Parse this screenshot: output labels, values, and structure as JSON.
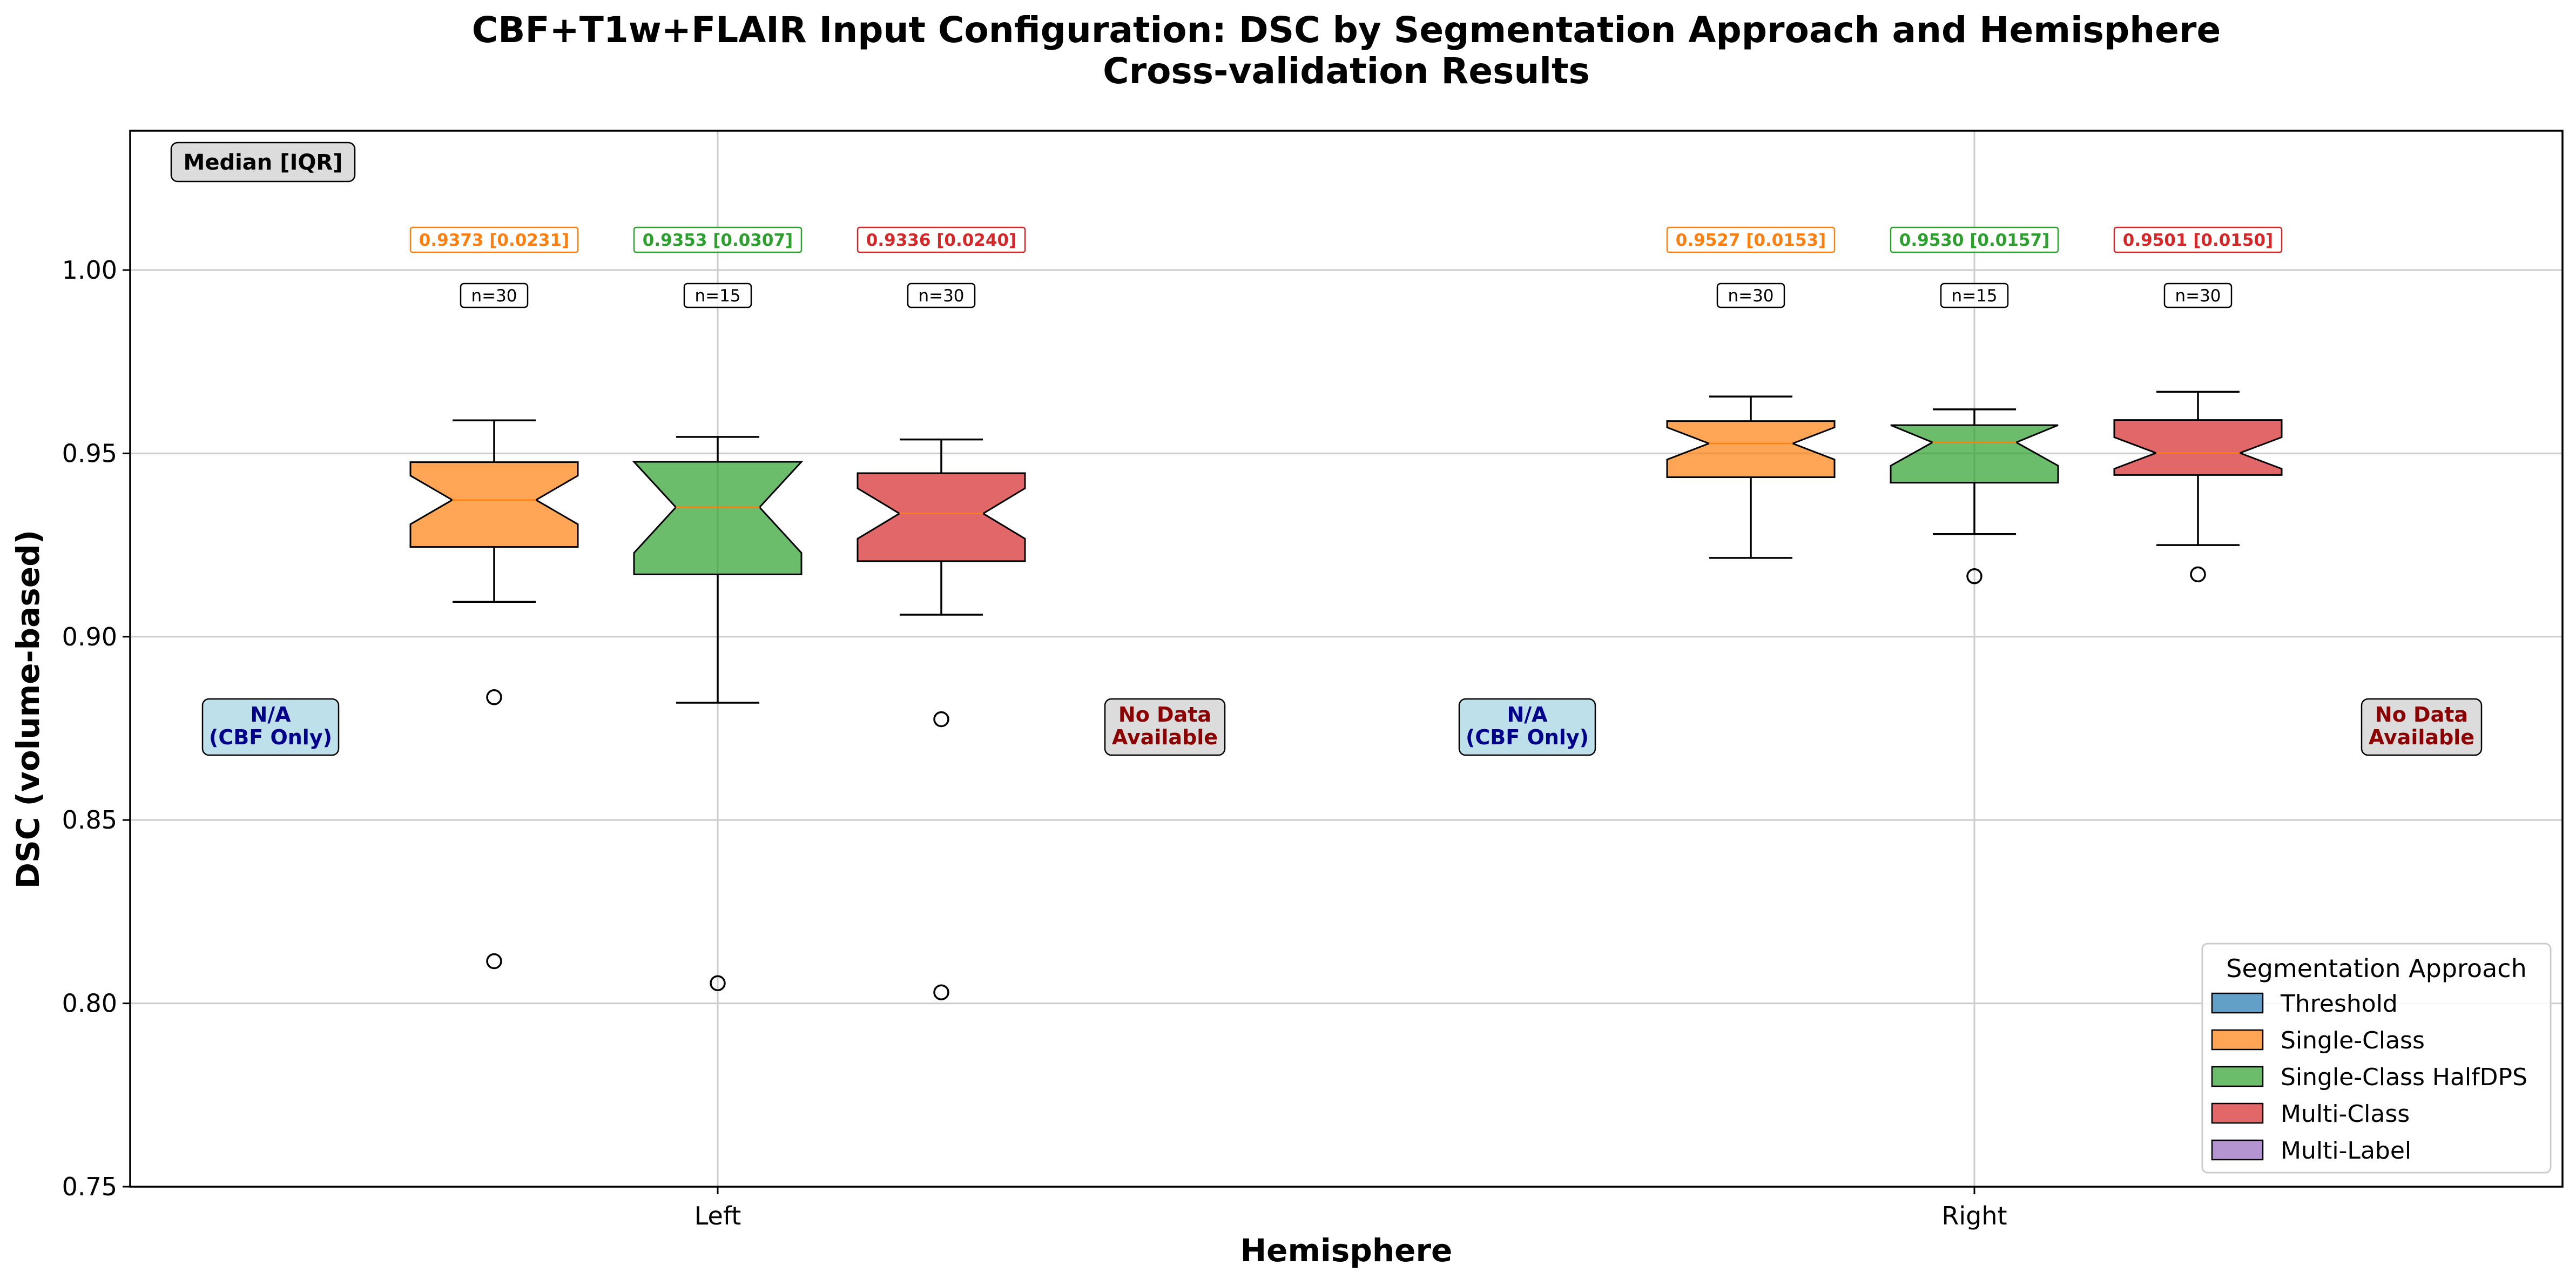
{
  "chart_data": {
    "type": "box",
    "title": "CBF+T1w+FLAIR Input Configuration: DSC by Segmentation Approach and Hemisphere",
    "subtitle": "Cross-validation Results",
    "xlabel": "Hemisphere",
    "ylabel": "DSC (volume-based)",
    "categories": [
      "Left",
      "Right"
    ],
    "ylim": [
      0.75,
      1.038
    ],
    "yticks": [
      0.75,
      0.8,
      0.85,
      0.9,
      0.95,
      1.0
    ],
    "ytick_labels": [
      "0.75",
      "0.80",
      "0.85",
      "0.90",
      "0.95",
      "1.00"
    ],
    "grid": true,
    "notched": true,
    "median_iqr_label": "Median [IQR]",
    "series": [
      {
        "name": "Threshold",
        "color": "#1f77b4",
        "boxes": [
          {
            "category": "Left",
            "na_label": "N/A\n(CBF Only)"
          },
          {
            "category": "Right",
            "na_label": "N/A\n(CBF Only)"
          }
        ]
      },
      {
        "name": "Single-Class",
        "color": "#ff7f0e",
        "boxes": [
          {
            "category": "Left",
            "q1": 0.9245,
            "median": 0.9373,
            "q3": 0.9476,
            "whisker_low": 0.9095,
            "whisker_high": 0.959,
            "outliers": [
              0.8835,
              0.8115
            ],
            "summary": "0.9373 [0.0231]",
            "n": "n=30"
          },
          {
            "category": "Right",
            "q1": 0.9435,
            "median": 0.9527,
            "q3": 0.9588,
            "whisker_low": 0.9215,
            "whisker_high": 0.9655,
            "outliers": [],
            "summary": "0.9527 [0.0153]",
            "n": "n=30"
          }
        ]
      },
      {
        "name": "Single-Class HalfDPS",
        "color": "#2ca02c",
        "boxes": [
          {
            "category": "Left",
            "q1": 0.917,
            "median": 0.9353,
            "q3": 0.9477,
            "whisker_low": 0.882,
            "whisker_high": 0.9545,
            "outliers": [
              0.8055
            ],
            "summary": "0.9353 [0.0307]",
            "n": "n=15"
          },
          {
            "category": "Right",
            "q1": 0.942,
            "median": 0.953,
            "q3": 0.9577,
            "whisker_low": 0.928,
            "whisker_high": 0.962,
            "outliers": [
              0.9165
            ],
            "summary": "0.9530 [0.0157]",
            "n": "n=15"
          }
        ]
      },
      {
        "name": "Multi-Class",
        "color": "#d62728",
        "boxes": [
          {
            "category": "Left",
            "q1": 0.9206,
            "median": 0.9336,
            "q3": 0.9446,
            "whisker_low": 0.906,
            "whisker_high": 0.9538,
            "outliers": [
              0.8775,
              0.803
            ],
            "summary": "0.9336 [0.0240]",
            "n": "n=30"
          },
          {
            "category": "Right",
            "q1": 0.9441,
            "median": 0.9501,
            "q3": 0.9591,
            "whisker_low": 0.925,
            "whisker_high": 0.9668,
            "outliers": [
              0.917
            ],
            "summary": "0.9501 [0.0150]",
            "n": "n=30"
          }
        ]
      },
      {
        "name": "Multi-Label",
        "color": "#9467bd",
        "boxes": [
          {
            "category": "Left",
            "na_label": "No Data\nAvailable"
          },
          {
            "category": "Right",
            "na_label": "No Data\nAvailable"
          }
        ]
      }
    ],
    "legend": {
      "title": "Segmentation Approach",
      "placement": "lower-right",
      "entries": [
        "Threshold",
        "Single-Class",
        "Single-Class HalfDPS",
        "Multi-Class",
        "Multi-Label"
      ]
    },
    "na_text_colors": {
      "N/A": "#00008b",
      "No Data": "#8b0000"
    },
    "na_box_colors": {
      "N/A": "#add8e6",
      "No Data": "#d3d3d3"
    }
  }
}
